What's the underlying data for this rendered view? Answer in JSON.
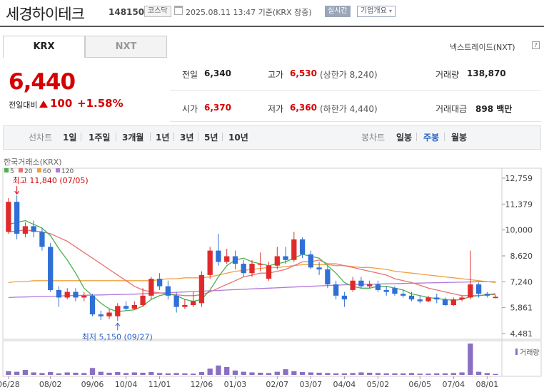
{
  "header": {
    "title": "세경하이테크",
    "code": "148150",
    "market": "코스닥",
    "date": "2025.08.11 13:47 기준(KRX 장중)",
    "realtime": "실시간",
    "corp_info": "기업개요"
  },
  "tabs": {
    "krx": "KRX",
    "nxt": "NXT",
    "nxt_link": "넥스트레이드(NXT)",
    "help": "?"
  },
  "quote": {
    "price": "6,440",
    "change_label": "전일대비",
    "change": "100",
    "change_pct": "+1.58%",
    "prev_label": "전일",
    "prev": "6,340",
    "high_label": "고가",
    "high": "6,530",
    "upper_limit": "(상한가 8,240)",
    "volume_label": "거래량",
    "volume": "138,870",
    "open_label": "시가",
    "open": "6,370",
    "low_label": "저가",
    "low": "6,360",
    "lower_limit": "(하한가 4,440)",
    "amount_label": "거래대금",
    "amount": "898 백만"
  },
  "periods": {
    "line_label": "선차트",
    "line_items": [
      "1일",
      "1주일",
      "3개월",
      "1년",
      "3년",
      "5년",
      "10년"
    ],
    "candle_label": "봉차트",
    "candle_items": [
      "일봉",
      "주봉",
      "월봉"
    ],
    "active_candle": "주봉"
  },
  "colors": {
    "up": "#e02a2a",
    "down": "#2f6fd6",
    "ma5": "#4caf50",
    "ma20": "#e57373",
    "ma60": "#f0a040",
    "ma120": "#b07ad8",
    "volume": "#8a6fc2"
  },
  "chart_data": {
    "type": "candlestick",
    "exchange_label": "한국거래소(KRX)",
    "legend": [
      "5",
      "20",
      "60",
      "120"
    ],
    "y_ticks": [
      "12,759",
      "11,379",
      "10,000",
      "8,620",
      "7,240",
      "5,861",
      "4,481"
    ],
    "ylim": [
      4481,
      12759
    ],
    "x_ticks": [
      "06/28",
      "08/02",
      "09/06",
      "10/04",
      "11/01",
      "12/06",
      "01/03",
      "02/07",
      "03/07",
      "04/04",
      "05/02",
      "06/05",
      "07/04",
      "08/01"
    ],
    "x_tick_index": [
      0,
      5,
      10,
      14,
      18,
      23,
      27,
      32,
      36,
      40,
      44,
      49,
      53,
      57
    ],
    "volume_label": "거래량",
    "max_label": "최고 11,840 (07/05)",
    "max_index": 1,
    "max_value": 11840,
    "min_label": "최저 5,150 (09/27)",
    "min_index": 13,
    "min_value": 5150,
    "candles": [
      [
        9900,
        11500,
        11700,
        9800
      ],
      [
        11500,
        9800,
        11840,
        9500
      ],
      [
        9800,
        10200,
        10400,
        9600
      ],
      [
        10200,
        9900,
        10500,
        9600
      ],
      [
        9900,
        9100,
        10100,
        8900
      ],
      [
        9100,
        6800,
        9300,
        6700
      ],
      [
        6800,
        6400,
        7000,
        5900
      ],
      [
        6400,
        6700,
        6900,
        6300
      ],
      [
        6700,
        6400,
        6900,
        6200
      ],
      [
        6400,
        6500,
        6700,
        6200
      ],
      [
        6500,
        5500,
        6600,
        5400
      ],
      [
        5500,
        5400,
        5700,
        5200
      ],
      [
        5400,
        5600,
        5800,
        5250
      ],
      [
        5400,
        5950,
        6100,
        5150
      ],
      [
        5950,
        5800,
        6200,
        5700
      ],
      [
        5800,
        6000,
        6200,
        5750
      ],
      [
        6000,
        6500,
        6900,
        5900
      ],
      [
        6500,
        7400,
        7500,
        6300
      ],
      [
        7400,
        7000,
        7700,
        6800
      ],
      [
        7000,
        6500,
        7300,
        6300
      ],
      [
        6500,
        5900,
        6700,
        5600
      ],
      [
        5900,
        6000,
        6300,
        5800
      ],
      [
        6000,
        6200,
        6700,
        5900
      ],
      [
        6100,
        7600,
        7800,
        5900
      ],
      [
        7600,
        8900,
        9100,
        7400
      ],
      [
        8900,
        8300,
        9800,
        8100
      ],
      [
        8300,
        8600,
        9000,
        8200
      ],
      [
        8600,
        8200,
        8900,
        7900
      ],
      [
        8200,
        7700,
        8400,
        7500
      ],
      [
        7700,
        8200,
        8400,
        7500
      ],
      [
        8200,
        8200,
        8800,
        7800
      ],
      [
        7400,
        8100,
        8300,
        7300
      ],
      [
        8100,
        8600,
        9100,
        7900
      ],
      [
        8600,
        8400,
        9100,
        8200
      ],
      [
        8400,
        9500,
        9900,
        8300
      ],
      [
        9500,
        8700,
        9600,
        8500
      ],
      [
        8700,
        8000,
        8900,
        7900
      ],
      [
        8000,
        7900,
        8300,
        7600
      ],
      [
        7900,
        7100,
        8100,
        6900
      ],
      [
        7100,
        6500,
        7300,
        6300
      ],
      [
        6500,
        6300,
        6700,
        5900
      ],
      [
        6800,
        7300,
        7500,
        6700
      ],
      [
        7300,
        7000,
        7500,
        6900
      ],
      [
        7000,
        7100,
        7300,
        6900
      ],
      [
        7100,
        6800,
        7300,
        6700
      ],
      [
        6800,
        6700,
        7000,
        6500
      ],
      [
        6900,
        6600,
        7000,
        6500
      ],
      [
        6600,
        6500,
        6800,
        6400
      ],
      [
        6500,
        6300,
        6700,
        6200
      ],
      [
        6300,
        6200,
        6500,
        6100
      ],
      [
        6200,
        6400,
        6500,
        6150
      ],
      [
        6400,
        6300,
        6600,
        6100
      ],
      [
        6300,
        6000,
        6400,
        5950
      ],
      [
        6000,
        6300,
        6400,
        5950
      ],
      [
        6300,
        6400,
        6500,
        6200
      ],
      [
        6400,
        7100,
        8900,
        6300
      ],
      [
        7100,
        6600,
        7200,
        6400
      ],
      [
        6600,
        6500,
        6700,
        6400
      ],
      [
        6370,
        6440,
        6530,
        6360
      ]
    ],
    "ma": {
      "5": [
        10300,
        10400,
        10500,
        10300,
        10100,
        9700,
        9000,
        8400,
        7700,
        6900,
        6500,
        6100,
        5800,
        5650,
        5700,
        5750,
        5950,
        6300,
        6500,
        6600,
        6500,
        6300,
        6200,
        6300,
        6800,
        7500,
        8100,
        8400,
        8500,
        8300,
        8200,
        8100,
        8200,
        8300,
        8500,
        8700,
        8600,
        8500,
        8100,
        7700,
        7200,
        7000,
        6900,
        6900,
        7000,
        7000,
        6900,
        6800,
        6600,
        6500,
        6400,
        6350,
        6300,
        6250,
        6300,
        6450,
        6500,
        6550,
        6600
      ],
      "20": [
        9900,
        9950,
        10000,
        9950,
        9900,
        9800,
        9600,
        9400,
        9100,
        8800,
        8500,
        8200,
        7900,
        7600,
        7300,
        7000,
        6800,
        6700,
        6650,
        6600,
        6550,
        6500,
        6500,
        6550,
        6700,
        6900,
        7100,
        7300,
        7500,
        7600,
        7700,
        7700,
        7800,
        7900,
        8100,
        8300,
        8300,
        8400,
        8200,
        8200,
        8100,
        8000,
        7900,
        7800,
        7700,
        7600,
        7400,
        7300,
        7200,
        7050,
        6900,
        6800,
        6700,
        6600,
        6500,
        6500,
        6500,
        6550,
        6550
      ],
      "60": [
        7200,
        7250,
        7250,
        7300,
        7300,
        7300,
        7300,
        7300,
        7300,
        7300,
        7300,
        7300,
        7300,
        7300,
        7300,
        7300,
        7300,
        7300,
        7350,
        7400,
        7400,
        7450,
        7450,
        7450,
        7500,
        7600,
        7700,
        7800,
        7850,
        7900,
        7950,
        8000,
        8000,
        8050,
        8100,
        8150,
        8150,
        8150,
        8150,
        8100,
        8100,
        8050,
        8000,
        8000,
        7950,
        7900,
        7800,
        7750,
        7700,
        7650,
        7600,
        7550,
        7500,
        7450,
        7400,
        7350,
        7300,
        7250,
        7200
      ],
      "120": [
        6400,
        6420,
        6430,
        6440,
        6450,
        6460,
        6480,
        6500,
        6510,
        6520,
        6530,
        6540,
        6550,
        6560,
        6570,
        6580,
        6600,
        6620,
        6640,
        6660,
        6680,
        6700,
        6720,
        6740,
        6760,
        6780,
        6800,
        6820,
        6840,
        6860,
        6880,
        6900,
        6920,
        6940,
        6960,
        6980,
        7000,
        7020,
        7040,
        7060,
        7080,
        7090,
        7100,
        7110,
        7120,
        7130,
        7140,
        7150,
        7160,
        7170,
        7180,
        7190,
        7200,
        7210,
        7220,
        7230,
        7240,
        7240,
        7240
      ]
    },
    "volume": [
      12,
      10,
      16,
      8,
      6,
      9,
      5,
      8,
      7,
      6,
      22,
      10,
      7,
      9,
      6,
      8,
      7,
      9,
      6,
      5,
      6,
      5,
      4,
      9,
      20,
      30,
      25,
      14,
      10,
      8,
      7,
      6,
      10,
      18,
      12,
      9,
      8,
      7,
      6,
      5,
      5,
      6,
      8,
      7,
      6,
      5,
      5,
      5,
      6,
      4,
      4,
      5,
      5,
      6,
      8,
      100,
      10,
      6,
      3
    ]
  }
}
